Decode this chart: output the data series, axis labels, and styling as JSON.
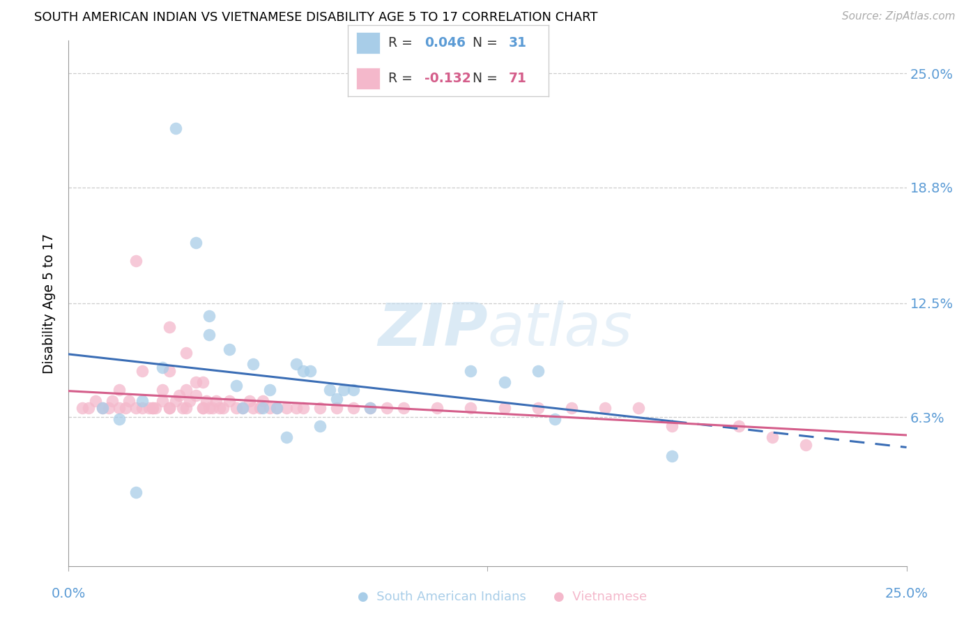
{
  "title": "SOUTH AMERICAN INDIAN VS VIETNAMESE DISABILITY AGE 5 TO 17 CORRELATION CHART",
  "source": "Source: ZipAtlas.com",
  "ylabel": "Disability Age 5 to 17",
  "ytick_values": [
    0.063,
    0.125,
    0.188,
    0.25
  ],
  "ytick_labels": [
    "6.3%",
    "12.5%",
    "18.8%",
    "25.0%"
  ],
  "xlim": [
    0.0,
    0.25
  ],
  "ylim": [
    -0.018,
    0.268
  ],
  "blue_r": "0.046",
  "blue_n": "31",
  "pink_r": "-0.132",
  "pink_n": "71",
  "blue_color": "#a8cde8",
  "pink_color": "#f4b8cb",
  "blue_line_color": "#3a6db5",
  "pink_line_color": "#d45d8a",
  "axis_label_color": "#5b9bd5",
  "watermark_color": "#c8dff0",
  "blue_scatter_x": [
    0.022,
    0.028,
    0.032,
    0.038,
    0.042,
    0.042,
    0.048,
    0.05,
    0.052,
    0.055,
    0.058,
    0.06,
    0.062,
    0.065,
    0.068,
    0.07,
    0.072,
    0.075,
    0.078,
    0.08,
    0.082,
    0.085,
    0.09,
    0.12,
    0.13,
    0.14,
    0.145,
    0.18,
    0.01,
    0.015,
    0.02
  ],
  "blue_scatter_y": [
    0.072,
    0.09,
    0.22,
    0.158,
    0.118,
    0.108,
    0.1,
    0.08,
    0.068,
    0.092,
    0.068,
    0.078,
    0.068,
    0.052,
    0.092,
    0.088,
    0.088,
    0.058,
    0.078,
    0.073,
    0.078,
    0.078,
    0.068,
    0.088,
    0.082,
    0.088,
    0.062,
    0.042,
    0.068,
    0.062,
    0.022
  ],
  "pink_scatter_x": [
    0.004,
    0.006,
    0.008,
    0.01,
    0.012,
    0.013,
    0.015,
    0.017,
    0.018,
    0.02,
    0.022,
    0.022,
    0.024,
    0.026,
    0.028,
    0.028,
    0.03,
    0.03,
    0.032,
    0.033,
    0.034,
    0.035,
    0.036,
    0.038,
    0.038,
    0.04,
    0.041,
    0.042,
    0.043,
    0.044,
    0.045,
    0.046,
    0.048,
    0.05,
    0.052,
    0.054,
    0.055,
    0.057,
    0.058,
    0.06,
    0.062,
    0.065,
    0.068,
    0.07,
    0.075,
    0.08,
    0.085,
    0.09,
    0.095,
    0.1,
    0.11,
    0.12,
    0.13,
    0.14,
    0.15,
    0.16,
    0.17,
    0.18,
    0.2,
    0.21,
    0.22,
    0.025,
    0.03,
    0.035,
    0.04,
    0.015,
    0.02,
    0.025,
    0.03,
    0.035,
    0.04
  ],
  "pink_scatter_x_outlier_x": [
    0.12
  ],
  "pink_scatter_x_outlier_y": [
    0.065
  ],
  "pink_scatter_y": [
    0.068,
    0.068,
    0.072,
    0.068,
    0.068,
    0.072,
    0.068,
    0.068,
    0.072,
    0.068,
    0.068,
    0.088,
    0.068,
    0.068,
    0.072,
    0.078,
    0.068,
    0.068,
    0.072,
    0.075,
    0.068,
    0.068,
    0.072,
    0.075,
    0.082,
    0.068,
    0.072,
    0.068,
    0.068,
    0.072,
    0.068,
    0.068,
    0.072,
    0.068,
    0.068,
    0.072,
    0.068,
    0.068,
    0.072,
    0.068,
    0.068,
    0.068,
    0.068,
    0.068,
    0.068,
    0.068,
    0.068,
    0.068,
    0.068,
    0.068,
    0.068,
    0.068,
    0.068,
    0.068,
    0.068,
    0.068,
    0.068,
    0.058,
    0.058,
    0.052,
    0.048,
    0.068,
    0.112,
    0.098,
    0.082,
    0.078,
    0.148,
    0.068,
    0.088,
    0.078,
    0.068
  ]
}
